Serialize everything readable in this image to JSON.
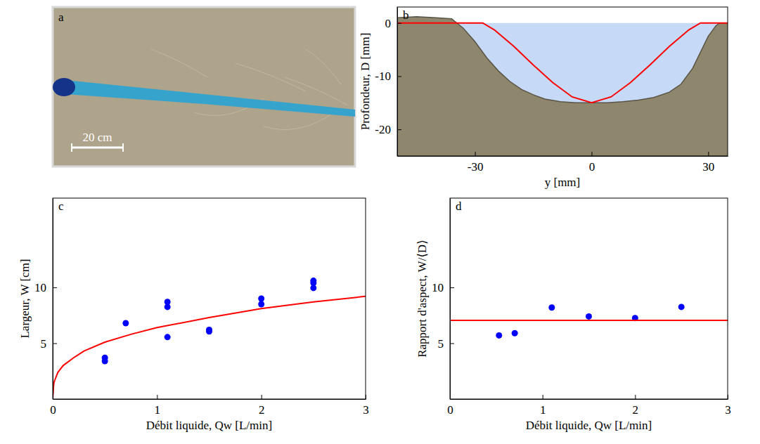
{
  "chart_data": [
    {
      "type": "image",
      "panel_label": "a",
      "annotations": [
        "20 cm"
      ]
    },
    {
      "type": "profile",
      "panel_label": "b",
      "x_label": "y [mm]",
      "y_label": "Profondeur, D [mm]",
      "xlim": [
        -50,
        35
      ],
      "ylim": [
        -25,
        3
      ],
      "xticks": [
        -30,
        0,
        30
      ],
      "yticks": [
        -20,
        -10,
        0
      ],
      "series": [
        {
          "type": "area",
          "color": "#c6d9f6",
          "x": [
            -50,
            35
          ],
          "values": [
            0,
            0
          ]
        },
        {
          "type": "area",
          "color": "#8e866d",
          "line_style": "solid",
          "x": [
            -50,
            -45,
            -40,
            -36,
            -33,
            -30,
            -27,
            -24,
            -21,
            -18,
            -15,
            -12,
            -8,
            -4,
            0,
            4,
            8,
            12,
            16,
            20,
            23,
            26,
            28,
            30,
            32,
            33,
            35
          ],
          "values": [
            1.0,
            1.2,
            1.0,
            0.8,
            -1,
            -3.5,
            -6.5,
            -9,
            -11,
            -12.5,
            -13.5,
            -14.3,
            -14.8,
            -15,
            -15,
            -15,
            -14.8,
            -14.5,
            -14,
            -13,
            -11.5,
            -8.5,
            -5.5,
            -2.5,
            -0.5,
            0,
            0
          ]
        },
        {
          "type": "line",
          "color": "#ff0000",
          "line_style": "solid",
          "x": [
            -50,
            -28,
            -25,
            -20,
            -15,
            -10,
            -5,
            0,
            5,
            10,
            15,
            20,
            25,
            28,
            35
          ],
          "values": [
            0,
            0,
            -1.3,
            -4.4,
            -7.9,
            -11.2,
            -13.9,
            -15,
            -13.9,
            -11.2,
            -7.9,
            -4.4,
            -1.3,
            0,
            0
          ]
        }
      ]
    },
    {
      "type": "scatter",
      "panel_label": "c",
      "x_label": "Débit liquide, Qw [L/min]",
      "y_label": "Largeur, W [cm]",
      "xlim": [
        0,
        3
      ],
      "ylim": [
        0,
        18
      ],
      "xticks": [
        0,
        1,
        2,
        3
      ],
      "yticks": [
        5,
        10
      ],
      "series": [
        {
          "type": "scatter",
          "color": "#0000ff",
          "marker": "circle",
          "x": [
            0.5,
            0.5,
            0.7,
            1.1,
            1.1,
            1.1,
            1.5,
            1.5,
            2.0,
            2.0,
            2.5,
            2.5,
            2.5
          ],
          "values": [
            3.7,
            3.4,
            6.8,
            8.7,
            8.25,
            5.55,
            6.2,
            6.05,
            9.0,
            8.5,
            10.6,
            10.4,
            9.95
          ]
        },
        {
          "type": "line",
          "color": "#ff0000",
          "line_style": "solid",
          "x": [
            0,
            0.01,
            0.02,
            0.05,
            0.1,
            0.2,
            0.3,
            0.5,
            0.75,
            1,
            1.5,
            2,
            2.5,
            3
          ],
          "values": [
            0,
            1.4,
            1.7,
            2.4,
            3.0,
            3.7,
            4.3,
            5.1,
            5.8,
            6.4,
            7.3,
            8.1,
            8.7,
            9.2
          ]
        }
      ]
    },
    {
      "type": "scatter",
      "panel_label": "d",
      "x_label": "Débit liquide, Qw [L/min]",
      "y_label": "Rapport d'aspect, W/⟨D⟩",
      "xlim": [
        0,
        3
      ],
      "ylim": [
        0,
        18
      ],
      "xticks": [
        0,
        1,
        2,
        3
      ],
      "yticks": [
        5,
        10
      ],
      "series": [
        {
          "type": "scatter",
          "color": "#0000ff",
          "marker": "circle",
          "x": [
            0.53,
            0.7,
            1.1,
            1.5,
            2.0,
            2.5
          ],
          "values": [
            5.7,
            5.9,
            8.2,
            7.4,
            7.25,
            8.25
          ]
        },
        {
          "type": "line",
          "color": "#ff0000",
          "line_style": "solid",
          "x": [
            0,
            3
          ],
          "values": [
            7.05,
            7.05
          ]
        }
      ]
    }
  ]
}
